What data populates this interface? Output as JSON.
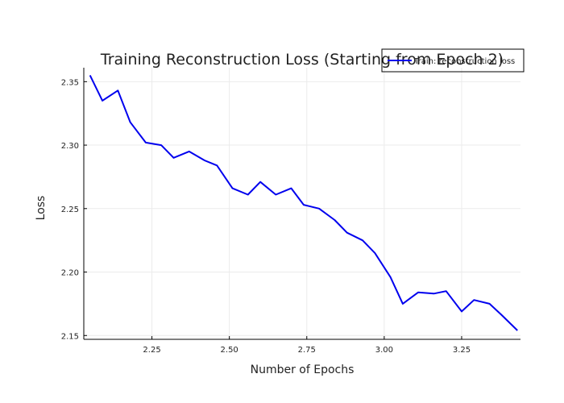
{
  "chart_data": {
    "type": "line",
    "title": "Training Reconstruction Loss (Starting from Epoch 2)",
    "xlabel": "Number of Epochs",
    "ylabel": "Loss",
    "xlim": [
      2.03,
      3.44
    ],
    "ylim": [
      2.147,
      2.361
    ],
    "xticks": [
      2.25,
      2.5,
      2.75,
      3.0,
      3.25
    ],
    "xtick_labels": [
      "2.25",
      "2.50",
      "2.75",
      "3.00",
      "3.25"
    ],
    "yticks": [
      2.15,
      2.2,
      2.25,
      2.3,
      2.35
    ],
    "ytick_labels": [
      "2.15",
      "2.20",
      "2.25",
      "2.30",
      "2.35"
    ],
    "grid": true,
    "legend_position": "top-right",
    "series": [
      {
        "name": "Train: reconstruction loss",
        "color": "#0000ee",
        "x": [
          2.05,
          2.09,
          2.14,
          2.18,
          2.23,
          2.28,
          2.32,
          2.37,
          2.42,
          2.46,
          2.51,
          2.56,
          2.6,
          2.65,
          2.7,
          2.74,
          2.79,
          2.84,
          2.88,
          2.93,
          2.97,
          3.02,
          3.06,
          3.11,
          3.16,
          3.2,
          3.25,
          3.29,
          3.34,
          3.38,
          3.43
        ],
        "y": [
          2.355,
          2.335,
          2.343,
          2.318,
          2.302,
          2.3,
          2.29,
          2.295,
          2.288,
          2.284,
          2.266,
          2.261,
          2.271,
          2.261,
          2.266,
          2.253,
          2.25,
          2.241,
          2.231,
          2.225,
          2.215,
          2.196,
          2.175,
          2.184,
          2.183,
          2.185,
          2.169,
          2.178,
          2.175,
          2.166,
          2.154
        ]
      }
    ]
  }
}
